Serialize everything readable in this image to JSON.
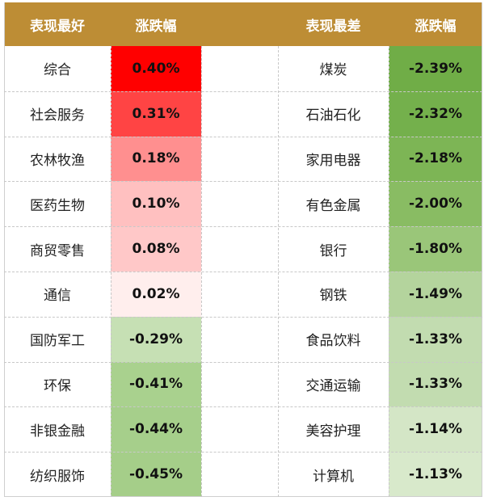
{
  "headers": {
    "best": "表现最好",
    "best_change": "涨跌幅",
    "worst": "表现最差",
    "worst_change": "涨跌幅"
  },
  "best": [
    {
      "name": "综合",
      "change": "0.40%",
      "color": "#ff0000"
    },
    {
      "name": "社会服务",
      "change": "0.31%",
      "color": "#ff4444"
    },
    {
      "name": "农林牧渔",
      "change": "0.18%",
      "color": "#ff8f8f"
    },
    {
      "name": "医药生物",
      "change": "0.10%",
      "color": "#ffc0c0"
    },
    {
      "name": "商贸零售",
      "change": "0.08%",
      "color": "#ffc8c8"
    },
    {
      "name": "通信",
      "change": "0.02%",
      "color": "#ffeeed"
    },
    {
      "name": "国防军工",
      "change": "-0.29%",
      "color": "#c6e0b4"
    },
    {
      "name": "环保",
      "change": "-0.41%",
      "color": "#a9d18e"
    },
    {
      "name": "非银金融",
      "change": "-0.44%",
      "color": "#a6cf8b"
    },
    {
      "name": "纺织服饰",
      "change": "-0.45%",
      "color": "#a5ce89"
    }
  ],
  "worst": [
    {
      "name": "煤炭",
      "change": "-2.39%",
      "color": "#70ad47"
    },
    {
      "name": "石油石化",
      "change": "-2.32%",
      "color": "#74b04c"
    },
    {
      "name": "家用电器",
      "change": "-2.18%",
      "color": "#7db555"
    },
    {
      "name": "有色金属",
      "change": "-2.00%",
      "color": "#89bc63"
    },
    {
      "name": "银行",
      "change": "-1.80%",
      "color": "#9ac679"
    },
    {
      "name": "钢铁",
      "change": "-1.49%",
      "color": "#b4d49d"
    },
    {
      "name": "食品饮料",
      "change": "-1.33%",
      "color": "#c2dcb0"
    },
    {
      "name": "交通运输",
      "change": "-1.33%",
      "color": "#c2dcb0"
    },
    {
      "name": "美容护理",
      "change": "-1.14%",
      "color": "#d4e6c6"
    },
    {
      "name": "计算机",
      "change": "-1.13%",
      "color": "#d8e9cb"
    }
  ]
}
